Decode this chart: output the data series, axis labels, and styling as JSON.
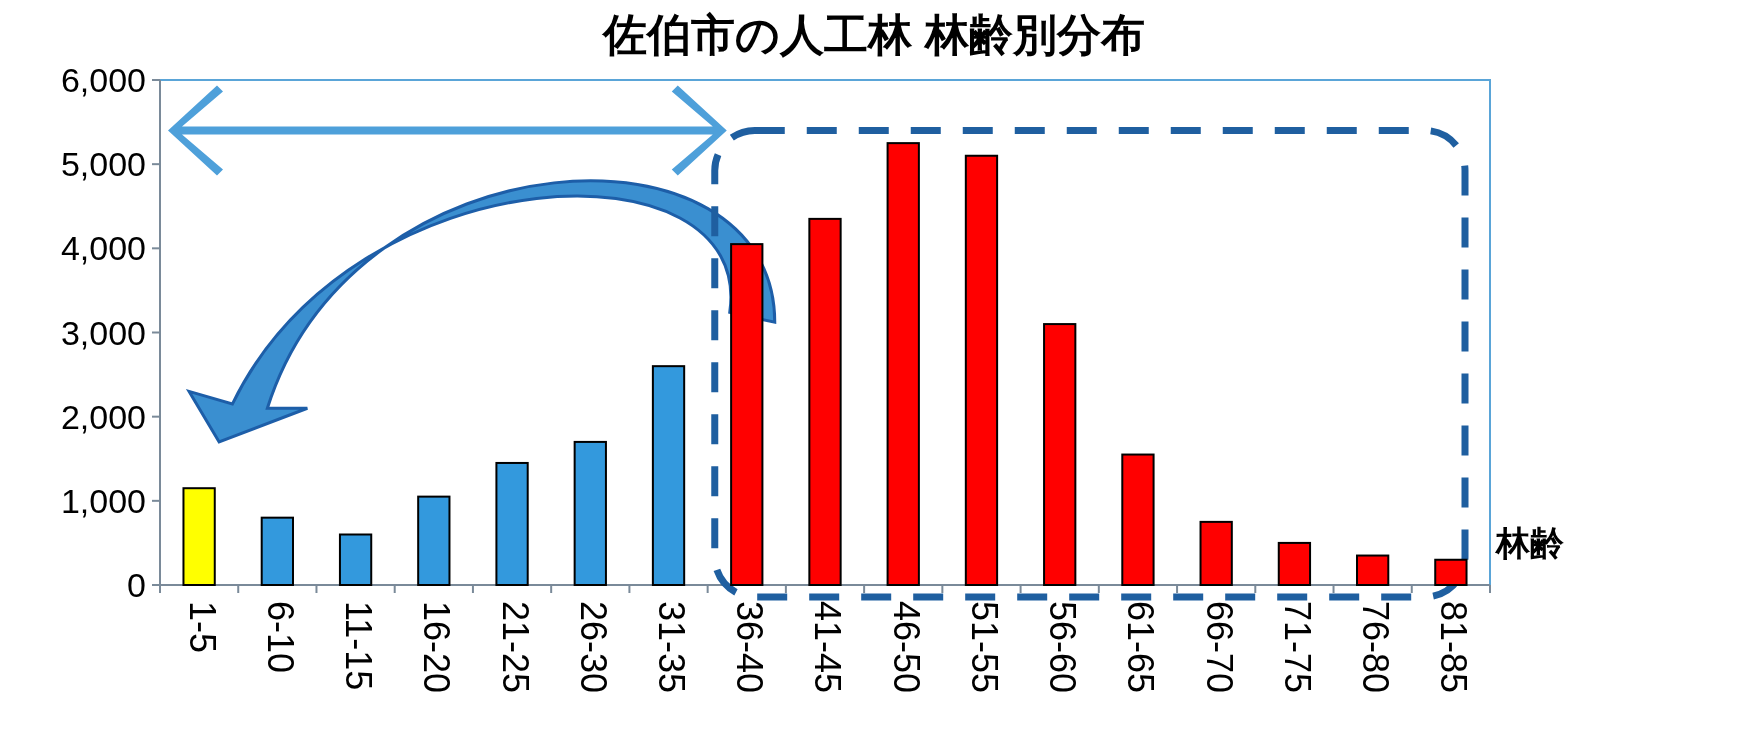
{
  "chart_data": {
    "type": "bar",
    "title": "佐伯市の人工林 林齢別分布",
    "xlabel": "林齢",
    "categories": [
      "1-5",
      "6-10",
      "11-15",
      "16-20",
      "21-25",
      "26-30",
      "31-35",
      "36-40",
      "41-45",
      "46-50",
      "51-55",
      "56-60",
      "61-65",
      "66-70",
      "71-75",
      "76-80",
      "81-85"
    ],
    "values": [
      1150,
      800,
      600,
      1050,
      1450,
      1700,
      2600,
      4050,
      4350,
      5250,
      5100,
      3100,
      1550,
      750,
      500,
      350,
      300
    ],
    "colors": [
      "#ffff00",
      "#3399dd",
      "#3399dd",
      "#3399dd",
      "#3399dd",
      "#3399dd",
      "#3399dd",
      "#ff0000",
      "#ff0000",
      "#ff0000",
      "#ff0000",
      "#ff0000",
      "#ff0000",
      "#ff0000",
      "#ff0000",
      "#ff0000",
      "#ff0000"
    ],
    "ylim": [
      0,
      6000
    ],
    "yticks": [
      {
        "value": 0,
        "label": "0"
      },
      {
        "value": 1000,
        "label": "1,000"
      },
      {
        "value": 2000,
        "label": "2,000"
      },
      {
        "value": 3000,
        "label": "3,000"
      },
      {
        "value": 4000,
        "label": "4,000"
      },
      {
        "value": 5000,
        "label": "5,000"
      },
      {
        "value": 6000,
        "label": "6,000"
      }
    ],
    "grid": false
  }
}
